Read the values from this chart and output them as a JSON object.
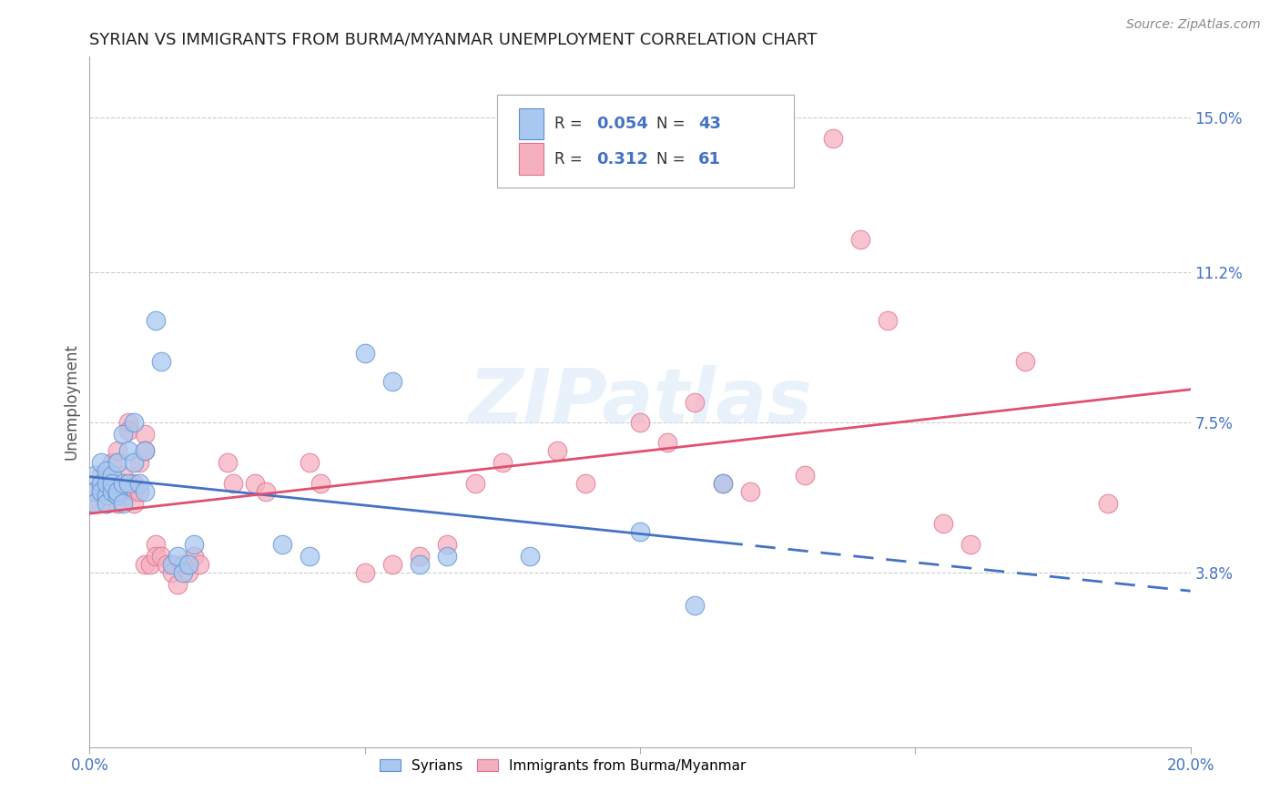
{
  "title": "SYRIAN VS IMMIGRANTS FROM BURMA/MYANMAR UNEMPLOYMENT CORRELATION CHART",
  "source": "Source: ZipAtlas.com",
  "ylabel": "Unemployment",
  "ytick_labels": [
    "15.0%",
    "11.2%",
    "7.5%",
    "3.8%"
  ],
  "ytick_values": [
    0.15,
    0.112,
    0.075,
    0.038
  ],
  "xmin": 0.0,
  "xmax": 0.2,
  "ymin": -0.005,
  "ymax": 0.165,
  "r_syrian": 0.054,
  "n_syrian": 43,
  "r_burma": 0.312,
  "n_burma": 61,
  "color_syrian": "#A8C8F0",
  "color_burma": "#F5B0C0",
  "color_syrian_edge": "#6090D0",
  "color_burma_edge": "#E07090",
  "color_syrian_line": "#4472C4",
  "color_burma_line": "#E05070",
  "watermark": "ZIPatlas",
  "syrian_points": [
    [
      0.001,
      0.058
    ],
    [
      0.001,
      0.062
    ],
    [
      0.001,
      0.055
    ],
    [
      0.002,
      0.06
    ],
    [
      0.002,
      0.058
    ],
    [
      0.002,
      0.065
    ],
    [
      0.003,
      0.057
    ],
    [
      0.003,
      0.06
    ],
    [
      0.003,
      0.063
    ],
    [
      0.003,
      0.055
    ],
    [
      0.004,
      0.058
    ],
    [
      0.004,
      0.062
    ],
    [
      0.004,
      0.06
    ],
    [
      0.005,
      0.057
    ],
    [
      0.005,
      0.065
    ],
    [
      0.005,
      0.058
    ],
    [
      0.006,
      0.06
    ],
    [
      0.006,
      0.072
    ],
    [
      0.006,
      0.055
    ],
    [
      0.007,
      0.068
    ],
    [
      0.007,
      0.06
    ],
    [
      0.008,
      0.075
    ],
    [
      0.008,
      0.065
    ],
    [
      0.009,
      0.06
    ],
    [
      0.01,
      0.058
    ],
    [
      0.01,
      0.068
    ],
    [
      0.012,
      0.1
    ],
    [
      0.013,
      0.09
    ],
    [
      0.015,
      0.04
    ],
    [
      0.016,
      0.042
    ],
    [
      0.017,
      0.038
    ],
    [
      0.018,
      0.04
    ],
    [
      0.019,
      0.045
    ],
    [
      0.035,
      0.045
    ],
    [
      0.04,
      0.042
    ],
    [
      0.05,
      0.092
    ],
    [
      0.055,
      0.085
    ],
    [
      0.06,
      0.04
    ],
    [
      0.065,
      0.042
    ],
    [
      0.08,
      0.042
    ],
    [
      0.1,
      0.048
    ],
    [
      0.11,
      0.03
    ],
    [
      0.115,
      0.06
    ]
  ],
  "burma_points": [
    [
      0.001,
      0.058
    ],
    [
      0.001,
      0.055
    ],
    [
      0.002,
      0.062
    ],
    [
      0.002,
      0.058
    ],
    [
      0.003,
      0.06
    ],
    [
      0.003,
      0.055
    ],
    [
      0.004,
      0.057
    ],
    [
      0.004,
      0.065
    ],
    [
      0.005,
      0.058
    ],
    [
      0.005,
      0.068
    ],
    [
      0.005,
      0.055
    ],
    [
      0.006,
      0.062
    ],
    [
      0.006,
      0.058
    ],
    [
      0.007,
      0.075
    ],
    [
      0.007,
      0.073
    ],
    [
      0.008,
      0.06
    ],
    [
      0.008,
      0.058
    ],
    [
      0.008,
      0.055
    ],
    [
      0.009,
      0.058
    ],
    [
      0.009,
      0.065
    ],
    [
      0.01,
      0.072
    ],
    [
      0.01,
      0.068
    ],
    [
      0.01,
      0.04
    ],
    [
      0.011,
      0.04
    ],
    [
      0.012,
      0.045
    ],
    [
      0.012,
      0.042
    ],
    [
      0.013,
      0.042
    ],
    [
      0.014,
      0.04
    ],
    [
      0.015,
      0.038
    ],
    [
      0.016,
      0.035
    ],
    [
      0.017,
      0.04
    ],
    [
      0.018,
      0.038
    ],
    [
      0.019,
      0.042
    ],
    [
      0.02,
      0.04
    ],
    [
      0.025,
      0.065
    ],
    [
      0.026,
      0.06
    ],
    [
      0.03,
      0.06
    ],
    [
      0.032,
      0.058
    ],
    [
      0.04,
      0.065
    ],
    [
      0.042,
      0.06
    ],
    [
      0.05,
      0.038
    ],
    [
      0.055,
      0.04
    ],
    [
      0.06,
      0.042
    ],
    [
      0.065,
      0.045
    ],
    [
      0.07,
      0.06
    ],
    [
      0.075,
      0.065
    ],
    [
      0.085,
      0.068
    ],
    [
      0.09,
      0.06
    ],
    [
      0.1,
      0.075
    ],
    [
      0.105,
      0.07
    ],
    [
      0.11,
      0.08
    ],
    [
      0.115,
      0.06
    ],
    [
      0.12,
      0.058
    ],
    [
      0.13,
      0.062
    ],
    [
      0.135,
      0.145
    ],
    [
      0.14,
      0.12
    ],
    [
      0.145,
      0.1
    ],
    [
      0.155,
      0.05
    ],
    [
      0.16,
      0.045
    ],
    [
      0.17,
      0.09
    ],
    [
      0.185,
      0.055
    ]
  ]
}
